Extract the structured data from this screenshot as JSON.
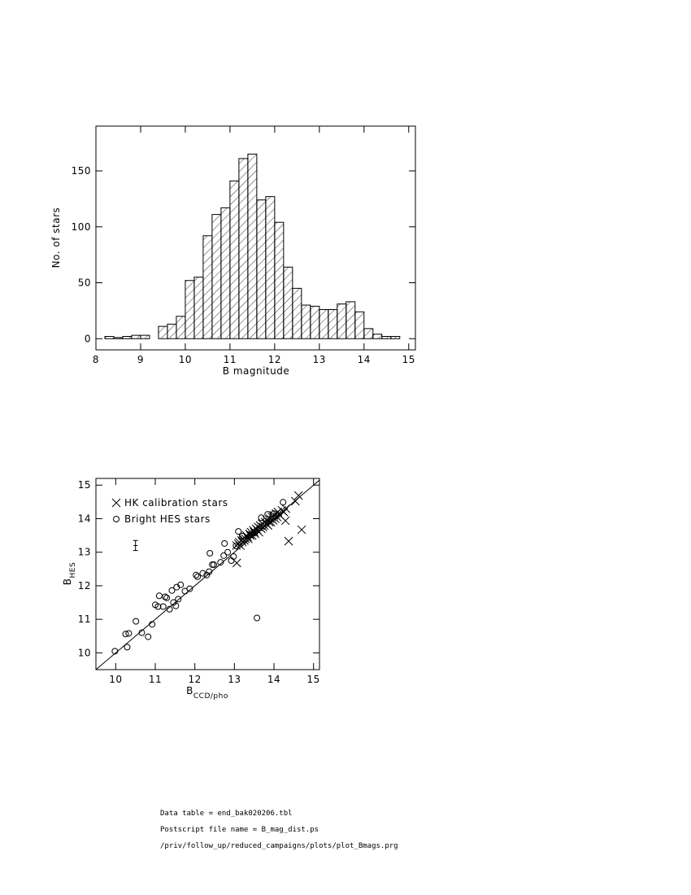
{
  "chart_data": [
    {
      "type": "histogram",
      "x_label": "B magnitude",
      "y_label": "No. of stars",
      "bins": [
        8.2,
        8.4,
        8.6,
        8.8,
        9.0,
        9.2,
        9.4,
        9.6,
        9.8,
        10.0,
        10.2,
        10.4,
        10.6,
        10.8,
        11.0,
        11.2,
        11.4,
        11.6,
        11.8,
        12.0,
        12.2,
        12.4,
        12.6,
        12.8,
        13.0,
        13.2,
        13.4,
        13.6,
        13.8,
        14.0,
        14.2,
        14.4,
        14.6,
        14.8,
        15.0,
        15.2
      ],
      "values": [
        2,
        1,
        2,
        3,
        3,
        0,
        11,
        13,
        20,
        52,
        55,
        92,
        111,
        117,
        141,
        161,
        165,
        124,
        127,
        104,
        64,
        45,
        30,
        29,
        26,
        26,
        31,
        33,
        24,
        9,
        4,
        2,
        2,
        0,
        0
      ],
      "xlim": [
        8,
        15.15
      ],
      "ylim": [
        -10,
        190
      ],
      "xticks": [
        8,
        9,
        10,
        11,
        12,
        13,
        14,
        15
      ],
      "yticks": [
        0,
        50,
        100,
        150
      ],
      "hatch": true
    },
    {
      "type": "scatter",
      "x_label": {
        "text": "B",
        "subscript": "CCD/pho"
      },
      "y_label": {
        "text": "B",
        "subscript": "HES"
      },
      "series": [
        {
          "name": "HK calibration stars",
          "marker": "x",
          "x": [
            13.05,
            13.1,
            13.12,
            13.15,
            13.18,
            13.2,
            13.22,
            13.25,
            13.28,
            13.3,
            13.33,
            13.35,
            13.38,
            13.4,
            13.42,
            13.45,
            13.48,
            13.5,
            13.52,
            13.55,
            13.58,
            13.6,
            13.62,
            13.65,
            13.68,
            13.7,
            13.72,
            13.75,
            13.78,
            13.8,
            13.82,
            13.85,
            13.88,
            13.9,
            13.92,
            13.95,
            13.98,
            14.0,
            14.03,
            14.05,
            14.08,
            14.1,
            14.15,
            14.2,
            14.25,
            14.3,
            13.06,
            14.37,
            14.7,
            14.62,
            14.54,
            14.29
          ],
          "values": [
            13.2,
            13.25,
            13.3,
            13.2,
            13.35,
            13.3,
            13.4,
            13.35,
            13.4,
            13.5,
            13.45,
            13.4,
            13.55,
            13.5,
            13.6,
            13.5,
            13.65,
            13.6,
            13.55,
            13.7,
            13.65,
            13.75,
            13.6,
            13.8,
            13.7,
            13.85,
            13.75,
            13.8,
            13.9,
            13.85,
            13.95,
            13.8,
            13.9,
            14.0,
            13.9,
            14.05,
            13.95,
            14.1,
            14.0,
            14.15,
            14.05,
            14.2,
            14.1,
            14.25,
            14.2,
            14.3,
            12.68,
            13.33,
            13.67,
            14.69,
            14.52,
            13.94
          ]
        },
        {
          "name": "Bright HES stars",
          "marker": "o",
          "x": [
            9.98,
            10.25,
            10.33,
            10.29,
            10.51,
            10.66,
            10.82,
            10.92,
            11.0,
            11.07,
            11.1,
            11.2,
            11.25,
            11.29,
            11.36,
            11.42,
            11.46,
            11.52,
            11.54,
            11.58,
            11.64,
            11.75,
            11.87,
            12.03,
            12.07,
            12.2,
            12.3,
            12.36,
            12.38,
            12.44,
            12.48,
            12.65,
            12.73,
            12.75,
            12.83,
            12.92,
            12.98,
            13.04,
            13.1,
            13.2,
            13.57,
            13.68,
            13.84,
            14.0,
            14.23
          ],
          "values": [
            10.05,
            10.56,
            10.58,
            10.17,
            10.94,
            10.6,
            10.48,
            10.85,
            11.43,
            11.38,
            11.7,
            11.38,
            11.67,
            11.64,
            11.3,
            11.86,
            11.5,
            11.4,
            11.96,
            11.6,
            12.03,
            11.84,
            11.91,
            12.32,
            12.27,
            12.37,
            12.32,
            12.42,
            12.97,
            12.63,
            12.63,
            12.7,
            12.9,
            13.26,
            13.0,
            12.75,
            12.87,
            13.19,
            13.62,
            13.48,
            11.04,
            14.03,
            14.13,
            14.15,
            14.49
          ]
        }
      ],
      "error_bar": {
        "x": 10.5,
        "y": 13.2,
        "xerr": 0.05,
        "yerr": 0.15
      },
      "identity_line": true,
      "xlim": [
        9.5,
        15.15
      ],
      "ylim": [
        9.5,
        15.2
      ],
      "xticks": [
        10,
        11,
        12,
        13,
        14,
        15
      ],
      "yticks": [
        10,
        11,
        12,
        13,
        14,
        15
      ],
      "legend": "upper left"
    }
  ],
  "footer": {
    "lines": [
      "Data table = end_bak020206.tbl",
      "Postscript file name = B_mag_dist.ps",
      "/priv/follow_up/reduced_campaigns/plots/plot_Bmags.prg"
    ]
  }
}
